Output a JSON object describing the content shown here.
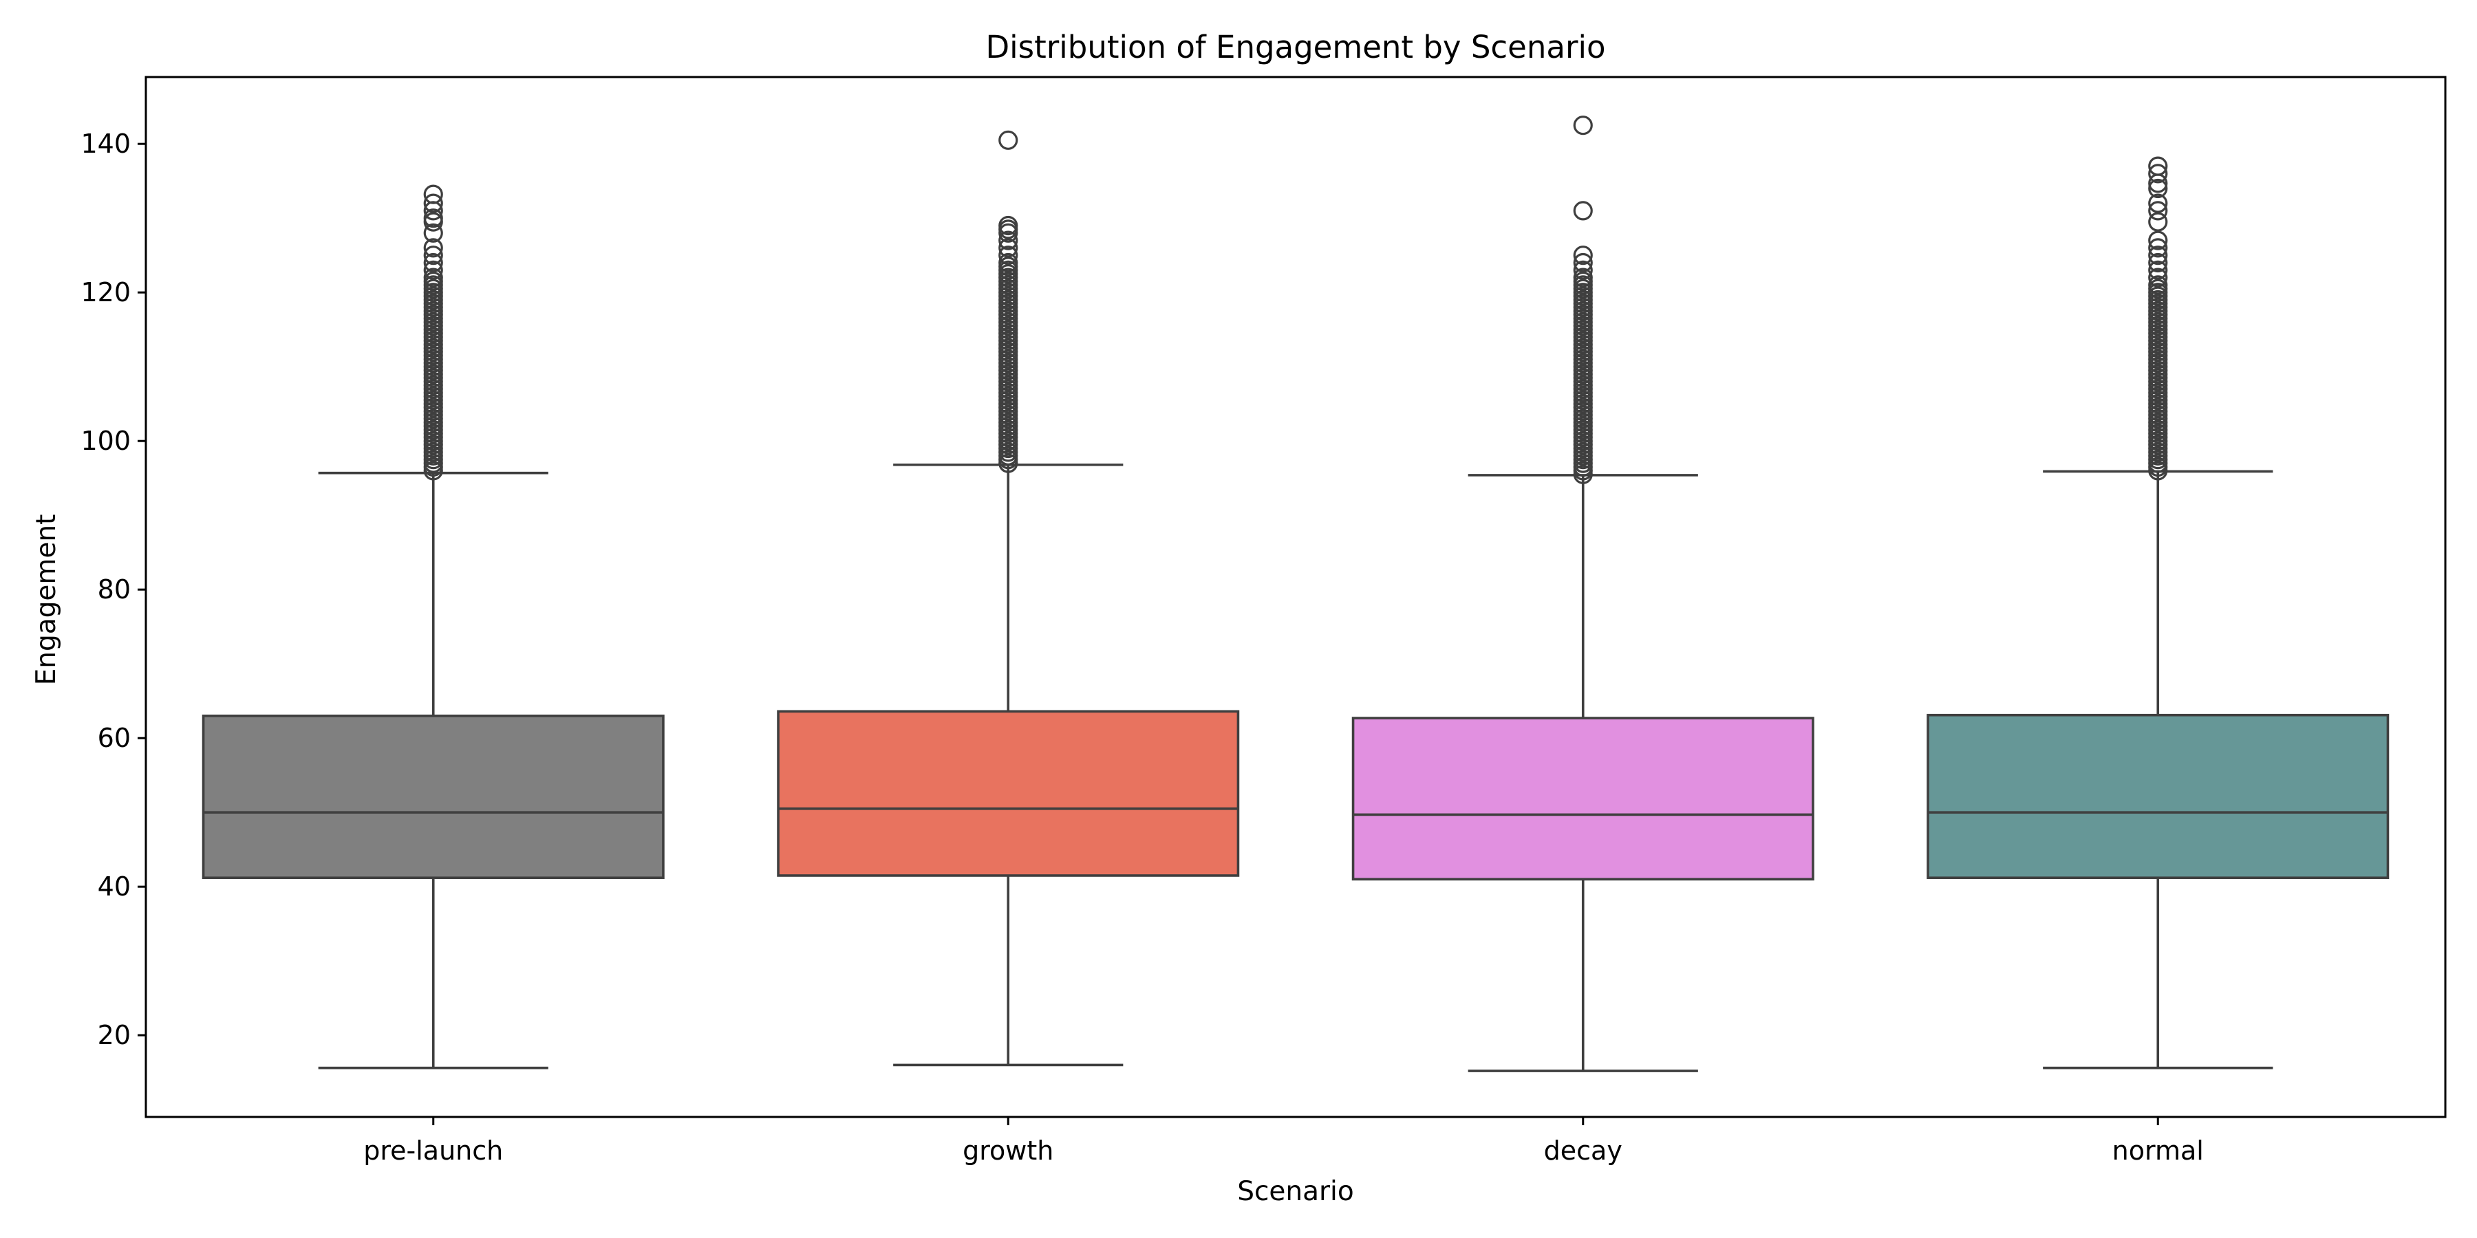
{
  "chart_data": {
    "type": "box",
    "title": "Distribution of Engagement by Scenario",
    "xlabel": "Scenario",
    "ylabel": "Engagement",
    "ylim": [
      9,
      149
    ],
    "yticks": [
      20,
      40,
      60,
      80,
      100,
      120,
      140
    ],
    "grid": false,
    "categories": [
      "pre-launch",
      "growth",
      "decay",
      "normal"
    ],
    "series": [
      {
        "category": "pre-launch",
        "color": "#808080",
        "whisker_low": 15.6,
        "q1": 41.2,
        "median": 50.0,
        "q3": 63.0,
        "whisker_high": 95.7,
        "outliers": [
          96,
          96.5,
          97,
          97.5,
          98,
          98.5,
          99,
          99.5,
          100,
          100.5,
          101,
          101.5,
          102,
          102.5,
          103,
          103.5,
          104,
          104.5,
          105,
          105.5,
          106,
          106.5,
          107,
          107.5,
          108,
          108.5,
          109,
          109.5,
          110,
          110.5,
          111,
          111.5,
          112,
          112.5,
          113,
          113.5,
          114,
          114.5,
          115,
          115.5,
          116,
          116.5,
          117,
          117.5,
          118,
          118.5,
          119,
          119.5,
          120,
          120.5,
          121,
          121.5,
          122,
          123,
          124,
          125,
          126,
          128,
          129.5,
          130,
          131,
          132,
          133.2
        ]
      },
      {
        "category": "growth",
        "color": "#e8735f",
        "whisker_low": 16.0,
        "q1": 41.5,
        "median": 50.5,
        "q3": 63.6,
        "whisker_high": 96.8,
        "outliers": [
          97,
          97.5,
          98,
          98.5,
          99,
          99.5,
          100,
          100.5,
          101,
          101.5,
          102,
          102.5,
          103,
          103.5,
          104,
          104.5,
          105,
          105.5,
          106,
          106.5,
          107,
          107.5,
          108,
          108.5,
          109,
          109.5,
          110,
          110.5,
          111,
          111.5,
          112,
          112.5,
          113,
          113.5,
          114,
          114.5,
          115,
          115.5,
          116,
          116.5,
          117,
          117.5,
          118,
          118.5,
          119,
          119.5,
          120,
          120.5,
          121,
          121.5,
          122,
          122.5,
          123,
          123.5,
          124,
          125,
          126,
          127,
          128,
          128.5,
          129,
          140.5
        ]
      },
      {
        "category": "decay",
        "color": "#e190e0",
        "whisker_low": 15.2,
        "q1": 41.0,
        "median": 49.7,
        "q3": 62.7,
        "whisker_high": 95.4,
        "outliers": [
          95.5,
          96,
          96.5,
          97,
          97.5,
          98,
          98.5,
          99,
          99.5,
          100,
          100.5,
          101,
          101.5,
          102,
          102.5,
          103,
          103.5,
          104,
          104.5,
          105,
          105.5,
          106,
          106.5,
          107,
          107.5,
          108,
          108.5,
          109,
          109.5,
          110,
          110.5,
          111,
          111.5,
          112,
          112.5,
          113,
          113.5,
          114,
          114.5,
          115,
          115.5,
          116,
          116.5,
          117,
          117.5,
          118,
          118.5,
          119,
          119.5,
          120,
          120.5,
          121,
          121.5,
          122,
          123,
          124,
          125,
          131,
          142.5
        ]
      },
      {
        "category": "normal",
        "color": "#669797",
        "whisker_low": 15.6,
        "q1": 41.2,
        "median": 50.0,
        "q3": 63.1,
        "whisker_high": 95.9,
        "outliers": [
          96,
          96.5,
          97,
          97.5,
          98,
          98.5,
          99,
          99.5,
          100,
          100.5,
          101,
          101.5,
          102,
          102.5,
          103,
          103.5,
          104,
          104.5,
          105,
          105.5,
          106,
          106.5,
          107,
          107.5,
          108,
          108.5,
          109,
          109.5,
          110,
          110.5,
          111,
          111.5,
          112,
          112.5,
          113,
          113.5,
          114,
          114.5,
          115,
          115.5,
          116,
          116.5,
          117,
          117.5,
          118,
          118.5,
          119,
          119.5,
          120,
          120.5,
          121,
          122,
          123,
          124,
          125,
          126,
          127,
          129.5,
          131,
          132,
          134,
          134.7,
          136,
          137
        ]
      }
    ]
  }
}
